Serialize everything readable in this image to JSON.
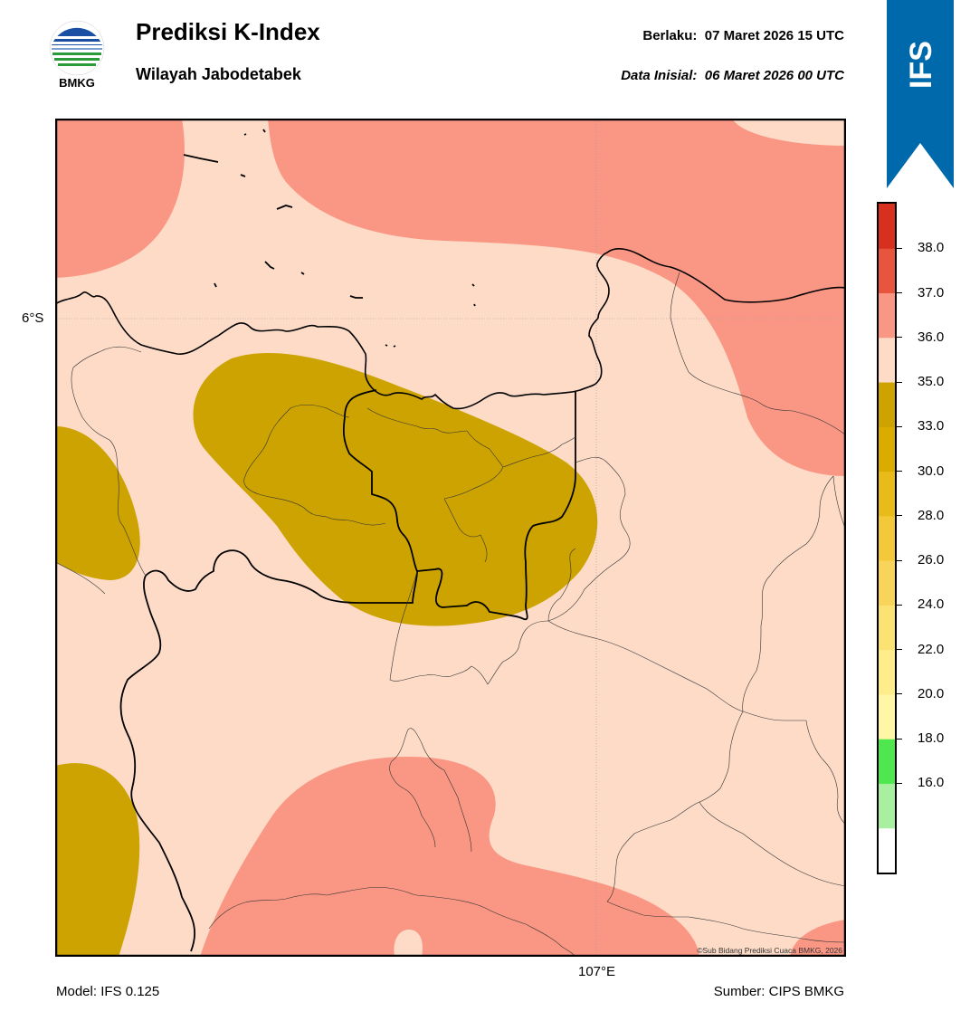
{
  "header": {
    "logo_text": "BMKG",
    "title": "Prediksi K-Index",
    "subtitle": "Wilayah Jabodetabek",
    "valid_label": "Berlaku:",
    "valid_time": "07 Maret 2026 15 UTC",
    "init_label": "Data Inisial:",
    "init_time": "06 Maret 2026 00 UTC"
  },
  "ribbon": {
    "text": "IFS",
    "color": "#0069ab"
  },
  "map": {
    "lat_label": "6°S",
    "lon_label": "107°E",
    "copyright": "©Sub Bidang Prediksi Cuaca BMKG, 2026",
    "colors": {
      "bg_35_36": "#fddbc7",
      "band_33_35": "#cca300",
      "band_36_37": "#fa9784",
      "coast": "#000000"
    }
  },
  "colorbar": {
    "ticks": [
      "38.0",
      "37.0",
      "36.0",
      "35.0",
      "33.0",
      "30.0",
      "28.0",
      "26.0",
      "24.0",
      "22.0",
      "20.0",
      "18.0",
      "16.0"
    ],
    "colors": [
      "#ffffff",
      "#a8f0a0",
      "#4ee84e",
      "#fff7a6",
      "#ffec8a",
      "#fce173",
      "#f8d55a",
      "#f3c93a",
      "#e9bb1a",
      "#dbac00",
      "#cca300",
      "#fddbc7",
      "#fa9784",
      "#e8553e",
      "#d7301f"
    ]
  },
  "footer": {
    "model": "Model: IFS 0.125",
    "source": "Sumber: CIPS BMKG"
  }
}
